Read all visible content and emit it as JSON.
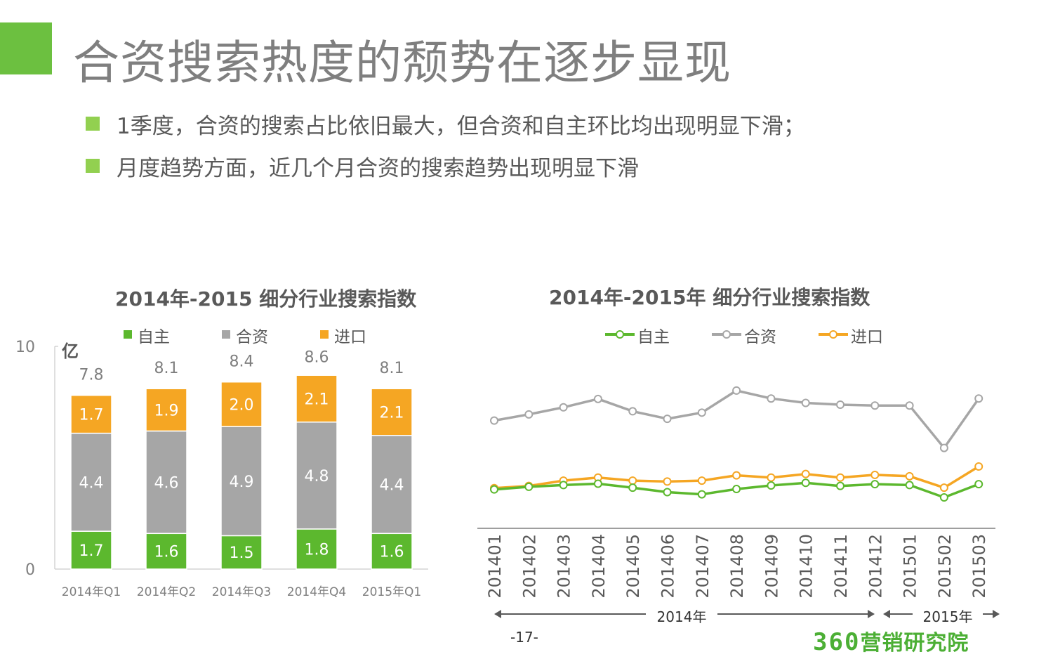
{
  "page": {
    "title": "合资搜索热度的颓势在逐步显现",
    "bullets": [
      "1季度，合资的搜索占比依旧最大，但合资和自主环比均出现明显下滑；",
      "月度趋势方面，近几个月合资的搜索趋势出现明显下滑"
    ],
    "page_number": "-17-",
    "brand_number": "360",
    "brand_text": "营销研究院"
  },
  "colors": {
    "accent": "#6cc040",
    "bullet": "#92d050",
    "zizhu": "#5cb82e",
    "hezi": "#a6a6a6",
    "jinkou": "#f5a623"
  },
  "chart_data": [
    {
      "type": "bar",
      "stacked": true,
      "title": "2014年-2015 细分行业搜索指数",
      "ylabel": "亿",
      "ylim": [
        0,
        10
      ],
      "yticks": [
        "0",
        "10"
      ],
      "categories": [
        "2014年Q1",
        "2014年Q2",
        "2014年Q3",
        "2014年Q4",
        "2015年Q1"
      ],
      "series": [
        {
          "name": "自主",
          "color": "#5cb82e",
          "values": [
            1.7,
            1.6,
            1.5,
            1.8,
            1.6
          ],
          "labels": [
            "1.7",
            "1.6",
            "1.5",
            "1.8",
            "1.6"
          ]
        },
        {
          "name": "合资",
          "color": "#a6a6a6",
          "values": [
            4.4,
            4.6,
            4.9,
            4.8,
            4.4
          ],
          "labels": [
            "4.4",
            "4.6",
            "4.9",
            "4.8",
            "4.4"
          ]
        },
        {
          "name": "进口",
          "color": "#f5a623",
          "values": [
            1.7,
            1.9,
            2.0,
            2.1,
            2.1
          ],
          "labels": [
            "1.7",
            "1.9",
            "2.0",
            "2.1",
            "2.1"
          ]
        }
      ],
      "totals": [
        7.8,
        8.1,
        8.4,
        8.6,
        8.1
      ],
      "total_labels": [
        "7.8",
        "8.1",
        "8.4",
        "8.6",
        "8.1"
      ]
    },
    {
      "type": "line",
      "title": "2014年-2015年  细分行业搜索指数",
      "x": [
        "201401",
        "201402",
        "201403",
        "201404",
        "201405",
        "201406",
        "201407",
        "201408",
        "201409",
        "201410",
        "201411",
        "201412",
        "201501",
        "201502",
        "201503"
      ],
      "ylim": [
        0,
        3.5
      ],
      "series": [
        {
          "name": "自主",
          "color": "#5cb82e",
          "values": [
            0.88,
            0.94,
            0.98,
            1.01,
            0.92,
            0.82,
            0.77,
            0.89,
            0.97,
            1.03,
            0.96,
            1.0,
            0.98,
            0.7,
            1.0
          ]
        },
        {
          "name": "合资",
          "color": "#a6a6a6",
          "values": [
            2.44,
            2.58,
            2.74,
            2.93,
            2.65,
            2.48,
            2.62,
            3.12,
            2.94,
            2.84,
            2.8,
            2.78,
            2.78,
            1.82,
            2.94
          ]
        },
        {
          "name": "进口",
          "color": "#f5a623",
          "values": [
            0.91,
            0.96,
            1.08,
            1.15,
            1.08,
            1.06,
            1.08,
            1.2,
            1.15,
            1.23,
            1.15,
            1.21,
            1.18,
            0.92,
            1.4
          ]
        }
      ],
      "periods": [
        {
          "label": "2014年",
          "from": "201401",
          "to": "201412"
        },
        {
          "label": "2015年",
          "from": "201501",
          "to": "201503"
        }
      ]
    }
  ]
}
